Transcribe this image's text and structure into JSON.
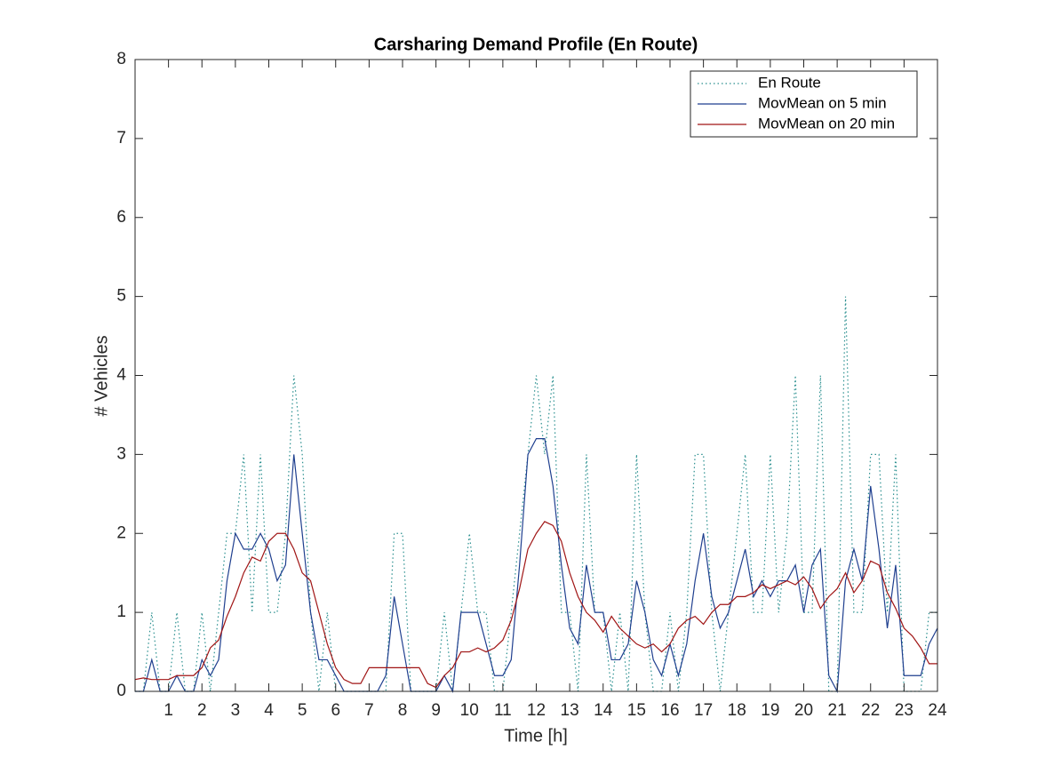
{
  "chart_data": {
    "type": "line",
    "title": "Carsharing Demand Profile (En Route)",
    "xlabel": "Time [h]",
    "ylabel": "# Vehicles",
    "x": [
      0,
      0.25,
      0.5,
      0.75,
      1,
      1.25,
      1.5,
      1.75,
      2,
      2.25,
      2.5,
      2.75,
      3,
      3.25,
      3.5,
      3.75,
      4,
      4.25,
      4.5,
      4.75,
      5,
      5.25,
      5.5,
      5.75,
      6,
      6.25,
      6.5,
      6.75,
      7,
      7.25,
      7.5,
      7.75,
      8,
      8.25,
      8.5,
      8.75,
      9,
      9.25,
      9.5,
      9.75,
      10,
      10.25,
      10.5,
      10.75,
      11,
      11.25,
      11.5,
      11.75,
      12,
      12.25,
      12.5,
      12.75,
      13,
      13.25,
      13.5,
      13.75,
      14,
      14.25,
      14.5,
      14.75,
      15,
      15.25,
      15.5,
      15.75,
      16,
      16.25,
      16.5,
      16.75,
      17,
      17.25,
      17.5,
      17.75,
      18,
      18.25,
      18.5,
      18.75,
      19,
      19.25,
      19.5,
      19.75,
      20,
      20.25,
      20.5,
      20.75,
      21,
      21.25,
      21.5,
      21.75,
      22,
      22.25,
      22.5,
      22.75,
      23,
      23.25,
      23.5,
      23.75,
      24
    ],
    "series": [
      {
        "name": "En Route",
        "color": "#2a8f8f",
        "line_style": "dotted",
        "values": [
          0,
          0,
          1,
          0,
          0,
          1,
          0,
          0,
          1,
          0,
          1,
          2,
          2,
          3,
          1,
          3,
          1,
          1,
          2,
          4,
          3,
          1,
          0,
          1,
          0,
          0,
          0,
          0,
          0,
          0,
          0,
          2,
          2,
          0,
          0,
          0,
          0,
          1,
          0,
          1,
          2,
          1,
          1,
          0,
          0,
          1,
          2,
          3,
          4,
          3,
          4,
          1,
          1,
          0,
          3,
          1,
          1,
          0,
          1,
          0,
          3,
          1,
          0,
          0,
          1,
          0,
          1,
          3,
          3,
          1,
          0,
          1,
          2,
          3,
          1,
          1,
          3,
          1,
          2,
          4,
          1,
          1,
          4,
          0,
          0,
          5,
          1,
          1,
          3,
          3,
          1,
          3,
          0,
          0,
          0,
          1,
          1
        ]
      },
      {
        "name": "MovMean on 5 min",
        "color": "#1f3f8f",
        "line_style": "solid",
        "values": [
          0,
          0,
          0.4,
          0,
          0,
          0.2,
          0,
          0,
          0.4,
          0.2,
          0.4,
          1.4,
          2.0,
          1.8,
          1.8,
          2.0,
          1.8,
          1.4,
          1.6,
          3.0,
          2.0,
          1.0,
          0.4,
          0.4,
          0.2,
          0,
          0,
          0,
          0,
          0,
          0.2,
          1.2,
          0.6,
          0,
          0,
          0,
          0,
          0.2,
          0,
          1.0,
          1.0,
          1.0,
          0.6,
          0.2,
          0.2,
          0.4,
          1.6,
          3.0,
          3.2,
          3.2,
          2.6,
          1.6,
          0.8,
          0.6,
          1.6,
          1.0,
          1.0,
          0.4,
          0.4,
          0.6,
          1.4,
          1.0,
          0.4,
          0.2,
          0.6,
          0.2,
          0.6,
          1.4,
          2.0,
          1.2,
          0.8,
          1.0,
          1.4,
          1.8,
          1.2,
          1.4,
          1.2,
          1.4,
          1.4,
          1.6,
          1.0,
          1.6,
          1.8,
          0.2,
          0,
          1.4,
          1.8,
          1.4,
          2.6,
          1.8,
          0.8,
          1.6,
          0.2,
          0.2,
          0.2,
          0.6,
          0.8
        ]
      },
      {
        "name": "MovMean on 20 min",
        "color": "#a01515",
        "line_style": "solid",
        "values": [
          0.15,
          0.17,
          0.15,
          0.15,
          0.15,
          0.2,
          0.2,
          0.2,
          0.3,
          0.55,
          0.65,
          0.95,
          1.2,
          1.5,
          1.7,
          1.65,
          1.9,
          2.0,
          2.0,
          1.8,
          1.5,
          1.4,
          1.0,
          0.6,
          0.3,
          0.15,
          0.1,
          0.1,
          0.3,
          0.3,
          0.3,
          0.3,
          0.3,
          0.3,
          0.3,
          0.1,
          0.05,
          0.2,
          0.3,
          0.5,
          0.5,
          0.55,
          0.5,
          0.55,
          0.65,
          0.9,
          1.3,
          1.8,
          2.0,
          2.15,
          2.1,
          1.9,
          1.5,
          1.2,
          1.0,
          0.9,
          0.75,
          0.95,
          0.8,
          0.7,
          0.6,
          0.55,
          0.6,
          0.5,
          0.6,
          0.8,
          0.9,
          0.95,
          0.85,
          1.0,
          1.1,
          1.1,
          1.2,
          1.2,
          1.25,
          1.35,
          1.3,
          1.35,
          1.4,
          1.35,
          1.45,
          1.3,
          1.05,
          1.2,
          1.3,
          1.5,
          1.25,
          1.4,
          1.65,
          1.6,
          1.25,
          1.05,
          0.8,
          0.7,
          0.55,
          0.35,
          0.35
        ]
      }
    ],
    "xlim": [
      0,
      24
    ],
    "xticks": [
      1,
      2,
      3,
      4,
      5,
      6,
      7,
      8,
      9,
      10,
      11,
      12,
      13,
      14,
      15,
      16,
      17,
      18,
      19,
      20,
      21,
      22,
      23,
      24
    ],
    "ylim": [
      0,
      8
    ],
    "yticks": [
      0,
      1,
      2,
      3,
      4,
      5,
      6,
      7,
      8
    ],
    "legend": "top-right"
  }
}
